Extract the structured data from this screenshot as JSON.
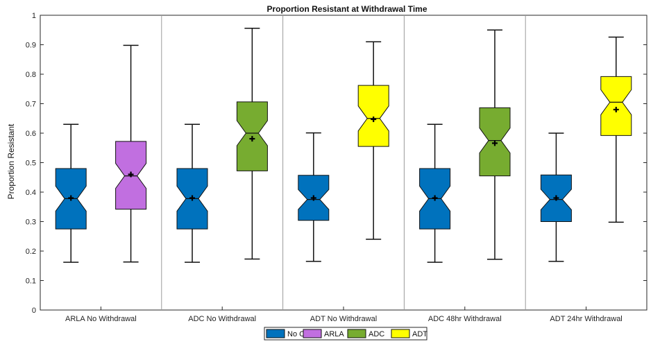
{
  "chart_data": {
    "type": "boxplot",
    "title": "Proportion Resistant at Withdrawal Time",
    "ylabel": "Proportion Resistant",
    "xlabel": "",
    "ylim": [
      0,
      1
    ],
    "yticks": [
      "0",
      "0.1",
      "0.2",
      "0.3",
      "0.4",
      "0.5",
      "0.6",
      "0.7",
      "0.8",
      "0.9",
      "1"
    ],
    "grid": false,
    "legend_position": "bottom-center",
    "legend": [
      {
        "name": "No CTC",
        "color": "#0072BD"
      },
      {
        "name": "ARLA",
        "color": "#C16FE0"
      },
      {
        "name": "ADC",
        "color": "#77AC30"
      },
      {
        "name": "ADT",
        "color": "#FFFF00"
      }
    ],
    "groups": [
      {
        "label": "ARLA No Withdrawal",
        "boxes": [
          {
            "series": "No CTC",
            "min": 0.162,
            "q1": 0.275,
            "median": 0.378,
            "q3": 0.48,
            "max": 0.63,
            "mean": 0.38
          },
          {
            "series": "ARLA",
            "min": 0.163,
            "q1": 0.342,
            "median": 0.455,
            "q3": 0.572,
            "max": 0.898,
            "mean": 0.46
          }
        ]
      },
      {
        "label": "ADC No Withdrawal",
        "boxes": [
          {
            "series": "No CTC",
            "min": 0.162,
            "q1": 0.275,
            "median": 0.378,
            "q3": 0.48,
            "max": 0.63,
            "mean": 0.38
          },
          {
            "series": "ADC",
            "min": 0.173,
            "q1": 0.472,
            "median": 0.6,
            "q3": 0.706,
            "max": 0.956,
            "mean": 0.581
          }
        ]
      },
      {
        "label": "ADT No Withdrawal",
        "boxes": [
          {
            "series": "No CTC",
            "min": 0.165,
            "q1": 0.304,
            "median": 0.375,
            "q3": 0.457,
            "max": 0.601,
            "mean": 0.38
          },
          {
            "series": "ADT",
            "min": 0.24,
            "q1": 0.555,
            "median": 0.65,
            "q3": 0.762,
            "max": 0.91,
            "mean": 0.647
          }
        ]
      },
      {
        "label": "ADC 48hr Withdrawal",
        "boxes": [
          {
            "series": "No CTC",
            "min": 0.162,
            "q1": 0.275,
            "median": 0.378,
            "q3": 0.48,
            "max": 0.63,
            "mean": 0.38
          },
          {
            "series": "ADC",
            "min": 0.172,
            "q1": 0.455,
            "median": 0.575,
            "q3": 0.686,
            "max": 0.95,
            "mean": 0.566
          }
        ]
      },
      {
        "label": "ADT 24hr Withdrawal",
        "boxes": [
          {
            "series": "No CTC",
            "min": 0.165,
            "q1": 0.3,
            "median": 0.375,
            "q3": 0.458,
            "max": 0.6,
            "mean": 0.38
          },
          {
            "series": "ADT",
            "min": 0.298,
            "q1": 0.592,
            "median": 0.705,
            "q3": 0.792,
            "max": 0.926,
            "mean": 0.68
          }
        ]
      }
    ]
  }
}
